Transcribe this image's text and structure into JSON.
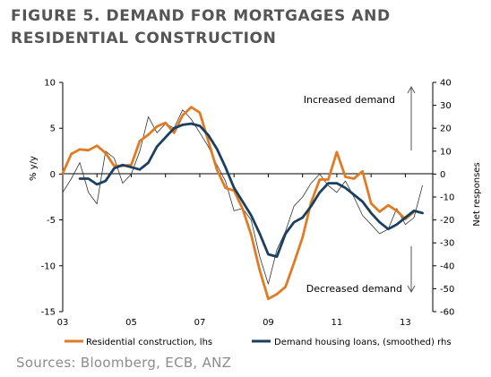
{
  "title_line1": "FIGURE 5. DEMAND FOR MORTGAGES AND",
  "title_line2": "RESIDENTIAL CONSTRUCTION",
  "sources": "Sources: Bloomberg, ECB, ANZ",
  "colors": {
    "residential": "#e07b24",
    "loans": "#1b3f5f",
    "raw": "#333333",
    "axis": "#000000"
  },
  "chart_data": {
    "type": "line",
    "title": "FIGURE 5. DEMAND FOR MORTGAGES AND RESIDENTIAL CONSTRUCTION",
    "x_range": [
      2003.0,
      2013.8
    ],
    "x_ticks": [
      {
        "v": 2003,
        "label": "03"
      },
      {
        "v": 2005,
        "label": "05"
      },
      {
        "v": 2007,
        "label": "07"
      },
      {
        "v": 2009,
        "label": "09"
      },
      {
        "v": 2011,
        "label": "11"
      },
      {
        "v": 2013,
        "label": "13"
      }
    ],
    "y_left": {
      "label": "% y/y",
      "range": [
        -15,
        10
      ],
      "ticks": [
        10,
        5,
        0,
        -5,
        -10,
        -15
      ]
    },
    "y_right": {
      "label": "Net responses",
      "range": [
        -60,
        40
      ],
      "ticks": [
        40,
        30,
        20,
        10,
        0,
        -10,
        -20,
        -30,
        -40,
        -50,
        -60
      ]
    },
    "annotations": {
      "up": "Increased demand",
      "down": "Decreased demand"
    },
    "legend": [
      "Residential construction, lhs",
      "Demand housing loans, (smoothed) rhs"
    ],
    "series": [
      {
        "name": "Residential construction, lhs",
        "axis": "left",
        "x": [
          2003.0,
          2003.25,
          2003.5,
          2003.75,
          2004.0,
          2004.25,
          2004.5,
          2004.75,
          2005.0,
          2005.25,
          2005.5,
          2005.75,
          2006.0,
          2006.25,
          2006.5,
          2006.75,
          2007.0,
          2007.25,
          2007.5,
          2007.75,
          2008.0,
          2008.25,
          2008.5,
          2008.75,
          2009.0,
          2009.25,
          2009.5,
          2009.75,
          2010.0,
          2010.25,
          2010.5,
          2010.75,
          2011.0,
          2011.25,
          2011.5,
          2011.75,
          2012.0,
          2012.25,
          2012.5,
          2012.75,
          2013.0,
          2013.25
        ],
        "values": [
          0.1,
          2.2,
          2.7,
          2.6,
          3.1,
          2.3,
          0.9,
          0.9,
          1.0,
          3.6,
          4.3,
          5.2,
          5.6,
          4.5,
          6.4,
          7.3,
          6.7,
          3.6,
          0.5,
          -1.5,
          -1.8,
          -3.8,
          -6.6,
          -10.5,
          -13.6,
          -13.1,
          -12.3,
          -9.7,
          -6.9,
          -3.1,
          -0.6,
          -0.6,
          2.4,
          -0.3,
          -0.5,
          0.3,
          -3.2,
          -4.1,
          -3.4,
          -4.0,
          -4.9,
          -4.1
        ]
      },
      {
        "name": "Demand housing loans, (smoothed) rhs",
        "axis": "right",
        "x": [
          2003.5,
          2003.75,
          2004.0,
          2004.25,
          2004.5,
          2004.75,
          2005.0,
          2005.25,
          2005.5,
          2005.75,
          2006.0,
          2006.25,
          2006.5,
          2006.75,
          2007.0,
          2007.25,
          2007.5,
          2007.75,
          2008.0,
          2008.25,
          2008.5,
          2008.75,
          2009.0,
          2009.25,
          2009.5,
          2009.75,
          2010.0,
          2010.25,
          2010.5,
          2010.75,
          2011.0,
          2011.25,
          2011.5,
          2011.75,
          2012.0,
          2012.25,
          2012.5,
          2012.75,
          2013.0,
          2013.25,
          2013.5
        ],
        "values": [
          -2,
          -2,
          -4.5,
          -3,
          2.5,
          4,
          3,
          2,
          5,
          12,
          16,
          20,
          21.5,
          22,
          21,
          17,
          11,
          3,
          -6,
          -12,
          -18,
          -26,
          -35,
          -36,
          -26,
          -21,
          -19,
          -14,
          -8,
          -4,
          -4,
          -6,
          -9,
          -12,
          -17,
          -21,
          -24,
          -22,
          -19,
          -16,
          -17
        ]
      },
      {
        "name": "",
        "axis": "right",
        "x": [
          2003.0,
          2003.25,
          2003.5,
          2003.75,
          2004.0,
          2004.25,
          2004.5,
          2004.75,
          2005.0,
          2005.25,
          2005.5,
          2005.75,
          2006.0,
          2006.25,
          2006.5,
          2006.75,
          2007.0,
          2007.25,
          2007.5,
          2007.75,
          2008.0,
          2008.25,
          2008.5,
          2008.75,
          2009.0,
          2009.25,
          2009.5,
          2009.75,
          2010.0,
          2010.25,
          2010.5,
          2010.75,
          2011.0,
          2011.25,
          2011.5,
          2011.75,
          2012.0,
          2012.25,
          2012.5,
          2012.75,
          2013.0,
          2013.25,
          2013.5
        ],
        "values": [
          -8,
          -2,
          5,
          -8,
          -13,
          10,
          7,
          -4,
          0,
          10,
          25,
          18,
          22,
          20,
          28,
          24,
          18,
          12,
          4,
          -3,
          -16,
          -15,
          -20,
          -36,
          -48,
          -33,
          -25,
          -14,
          -10,
          -4,
          0,
          -5,
          -8,
          -3,
          -10,
          -18,
          -22,
          -26,
          -24,
          -15,
          -22,
          -19,
          -5
        ]
      }
    ]
  }
}
